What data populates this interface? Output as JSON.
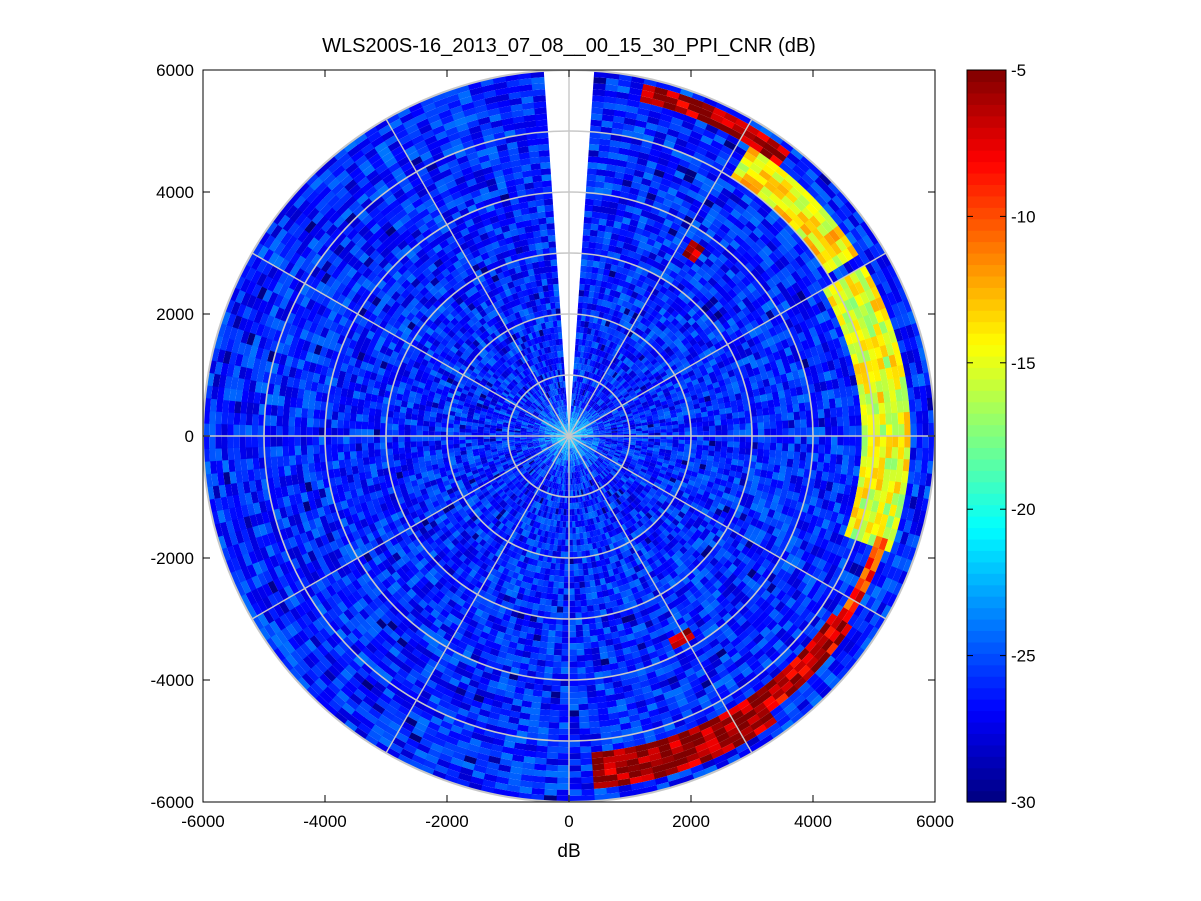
{
  "chart_data": {
    "type": "heatmap",
    "title": "WLS200S-16_2013_07_08__00_15_30_PPI_CNR (dB)",
    "xlabel": "dB",
    "ylabel": "",
    "xlim": [
      -6000,
      6000
    ],
    "ylim": [
      -6000,
      6000
    ],
    "x_ticks": [
      "-6000",
      "-4000",
      "-2000",
      "0",
      "2000",
      "4000",
      "6000"
    ],
    "y_ticks": [
      "6000",
      "4000",
      "2000",
      "0",
      "-2000",
      "-4000",
      "-6000"
    ],
    "polar_grid": {
      "ring_spacing": 1000,
      "max_range": 6000,
      "spoke_step_deg": 30,
      "grid": true
    },
    "scan": {
      "max_range": 6000,
      "missing_sector_deg": [
        356,
        4
      ],
      "background_range_db": [
        -28,
        -24
      ]
    },
    "features": [
      {
        "name": "arc",
        "range": [
          5650,
          5900
        ],
        "bearing_deg": [
          12,
          38
        ],
        "level_db": -6
      },
      {
        "name": "arc",
        "range": [
          5000,
          5600
        ],
        "bearing_deg": [
          32,
          58
        ],
        "level_db": -14
      },
      {
        "name": "arc",
        "range": [
          4800,
          5600
        ],
        "bearing_deg": [
          60,
          110
        ],
        "level_db": -15
      },
      {
        "name": "arc",
        "range": [
          5300,
          5500
        ],
        "bearing_deg": [
          108,
          125
        ],
        "level_db": -9
      },
      {
        "name": "arc",
        "range": [
          5200,
          5600
        ],
        "bearing_deg": [
          125,
          150
        ],
        "level_db": -7
      },
      {
        "name": "arc",
        "range": [
          5200,
          5800
        ],
        "bearing_deg": [
          145,
          175
        ],
        "level_db": -6
      },
      {
        "name": "blob",
        "range": [
          3500,
          3800
        ],
        "bearing_deg": [
          33,
          36
        ],
        "level_db": -6
      },
      {
        "name": "blob",
        "range": [
          3700,
          3900
        ],
        "bearing_deg": [
          149,
          153
        ],
        "level_db": -6
      }
    ],
    "colorbar": {
      "colormap": "jet",
      "range": [
        -30,
        -5
      ],
      "ticks": [
        "-5",
        "-10",
        "-15",
        "-20",
        "-25",
        "-30"
      ]
    }
  }
}
